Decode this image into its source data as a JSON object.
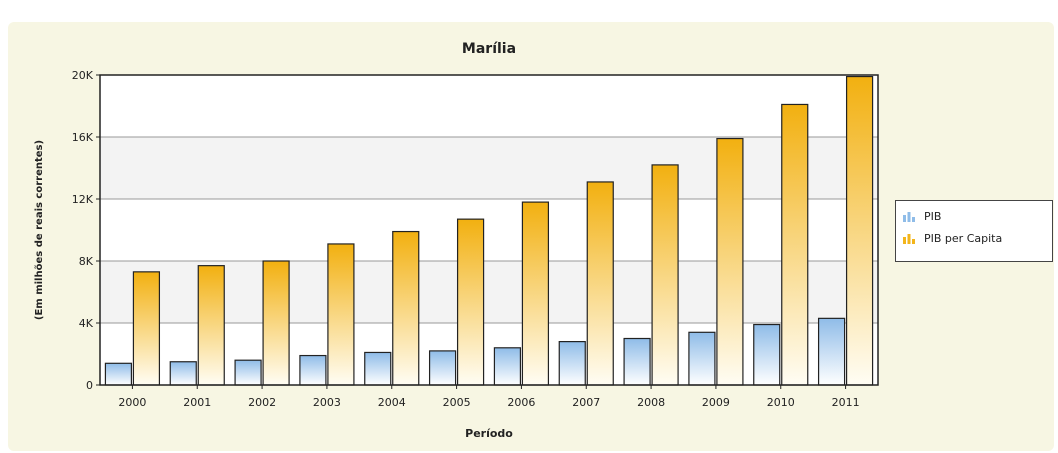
{
  "chart_data": {
    "type": "bar",
    "title": "Marília",
    "xlabel": "Período",
    "ylabel": "(Em milhões de reais correntes)",
    "categories": [
      "2000",
      "2001",
      "2002",
      "2003",
      "2004",
      "2005",
      "2006",
      "2007",
      "2008",
      "2009",
      "2010",
      "2011"
    ],
    "series": [
      {
        "name": "PIB",
        "color": "#a8c8ea",
        "values": [
          1400,
          1500,
          1600,
          1900,
          2100,
          2200,
          2400,
          2800,
          3000,
          3400,
          3900,
          4300
        ]
      },
      {
        "name": "PIB per Capita",
        "color": "#f3b51b",
        "values": [
          7300,
          7700,
          8000,
          9100,
          9900,
          10700,
          11800,
          13100,
          14200,
          15900,
          18100,
          19900
        ]
      }
    ],
    "ylim": [
      0,
      20000
    ],
    "yticks": [
      "0",
      "4K",
      "8K",
      "12K",
      "16K",
      "20K"
    ],
    "grid": true,
    "legend_position": "right"
  }
}
